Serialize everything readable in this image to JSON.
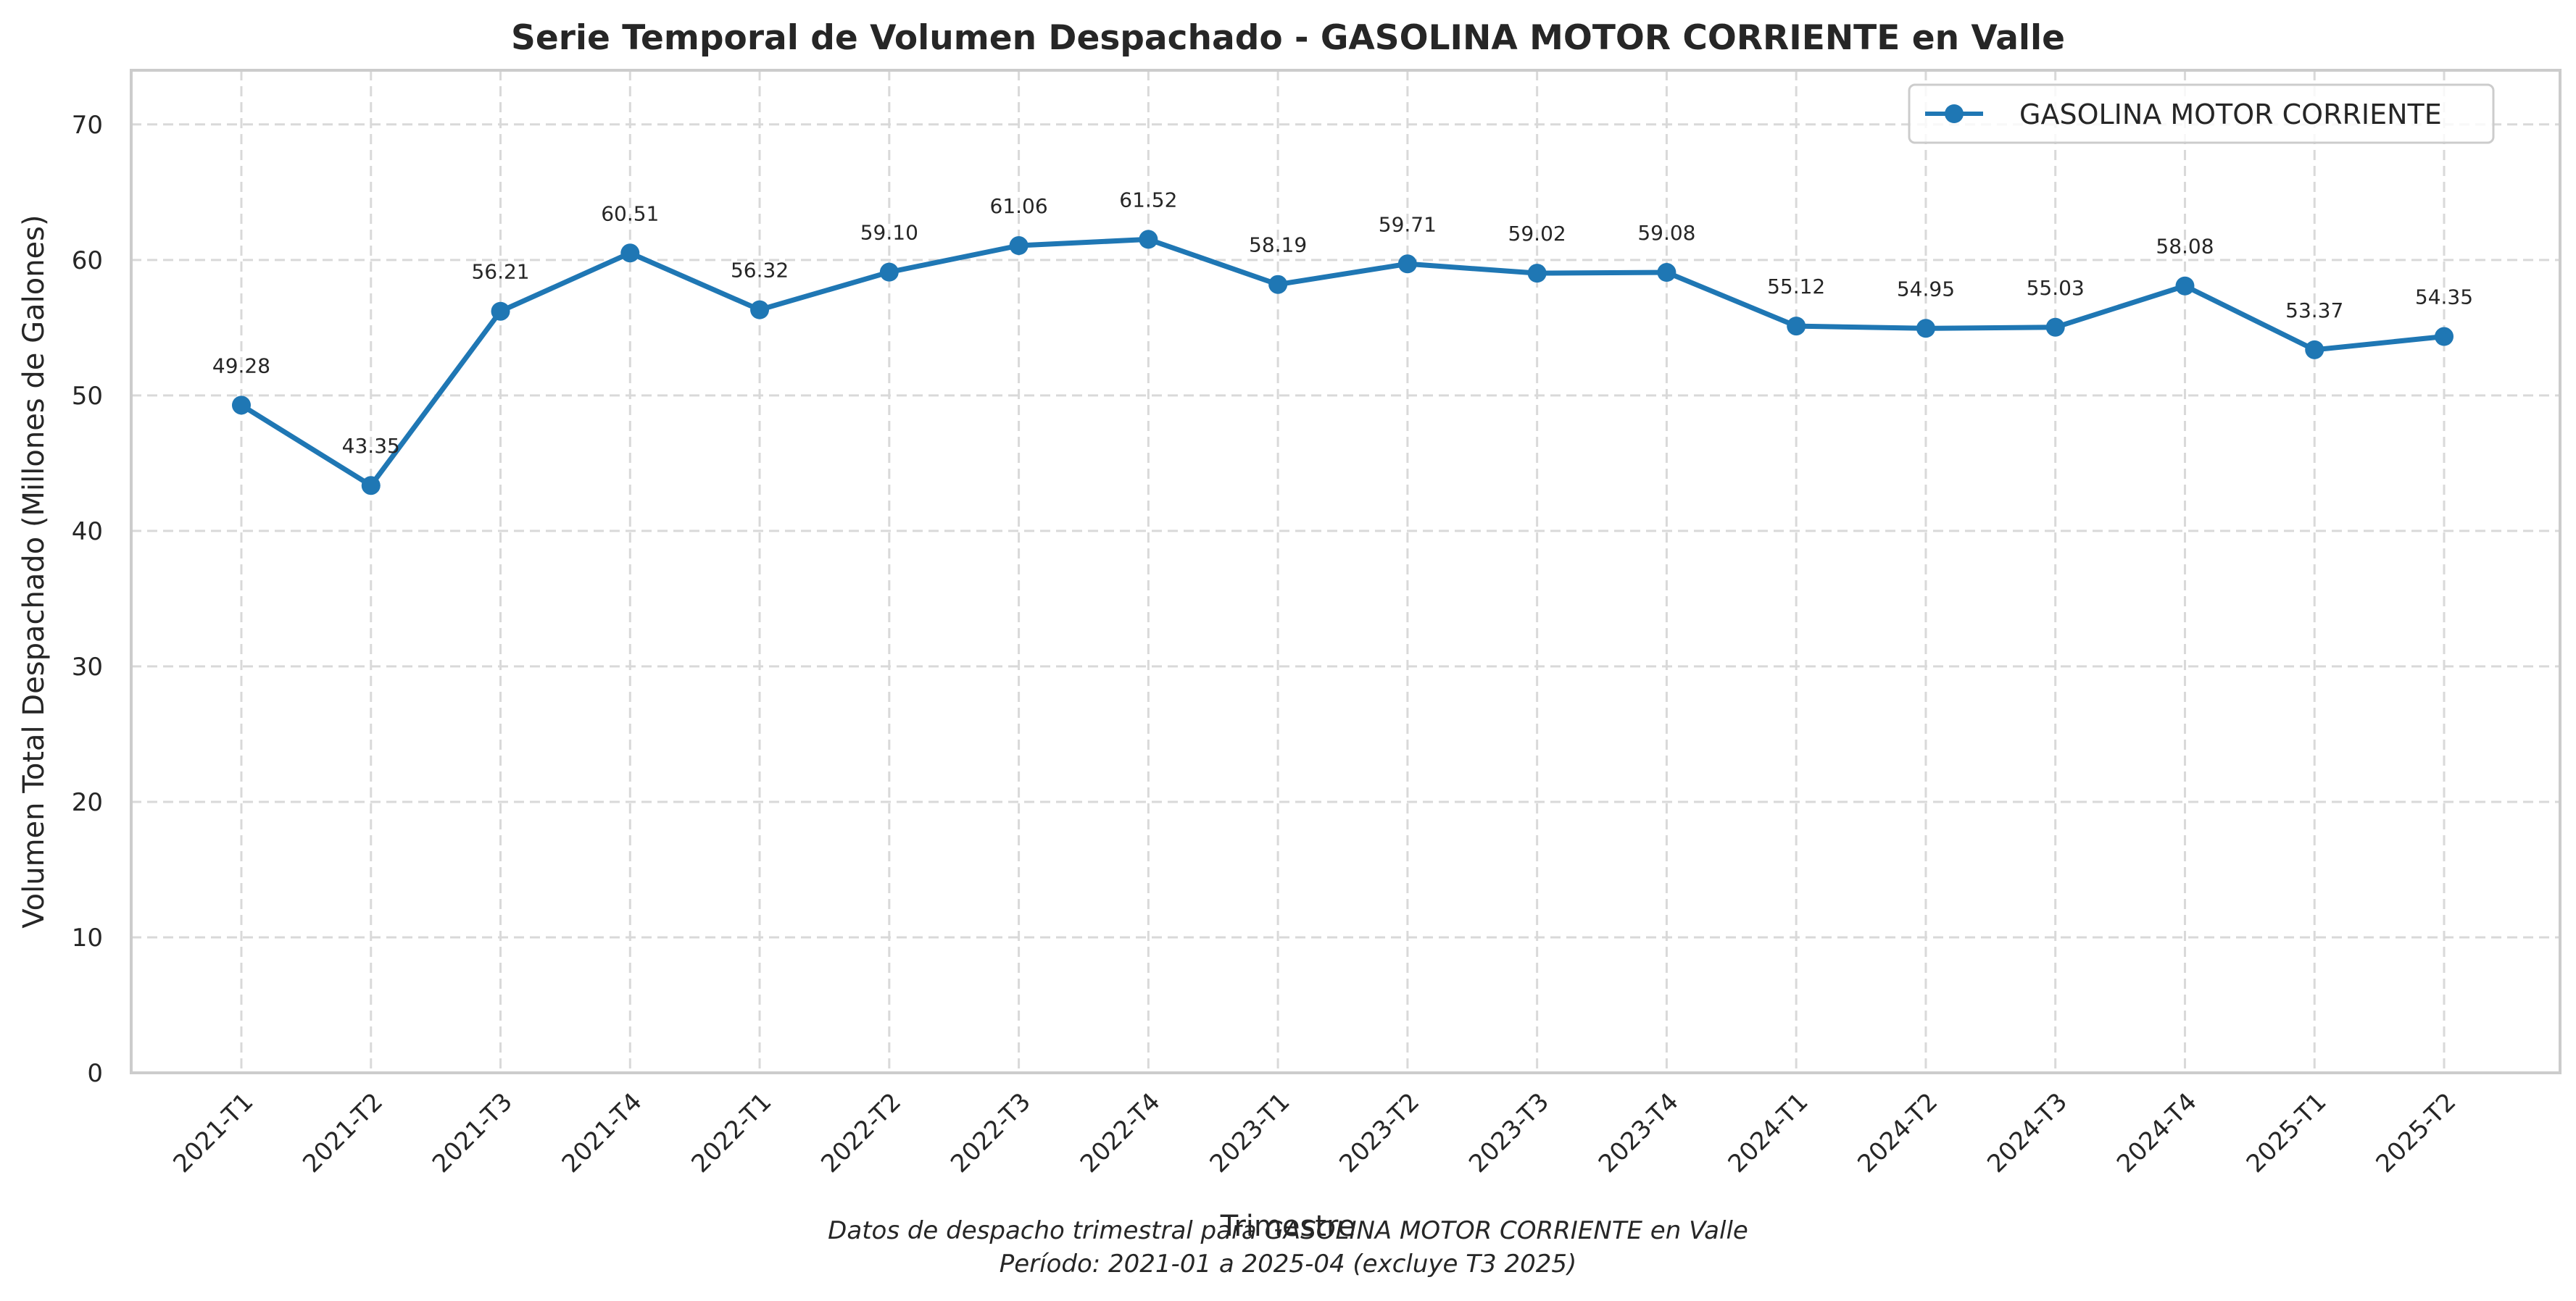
{
  "chart_data": {
    "type": "line",
    "title": "Serie Temporal de Volumen Despachado - GASOLINA MOTOR CORRIENTE en Valle",
    "xlabel": "Trimestre",
    "ylabel": "Volumen Total Despachado (Millones de Galones)",
    "ylim": [
      0,
      74
    ],
    "yticks": [
      0,
      10,
      20,
      30,
      40,
      50,
      60,
      70
    ],
    "grid": true,
    "legend_position": "top-right",
    "categories": [
      "2021-T1",
      "2021-T2",
      "2021-T3",
      "2021-T4",
      "2022-T1",
      "2022-T2",
      "2022-T3",
      "2022-T4",
      "2023-T1",
      "2023-T2",
      "2023-T3",
      "2023-T4",
      "2024-T1",
      "2024-T2",
      "2024-T3",
      "2024-T4",
      "2025-T1",
      "2025-T2"
    ],
    "series": [
      {
        "name": "GASOLINA MOTOR CORRIENTE",
        "color": "#1f77b4",
        "values": [
          49.28,
          43.35,
          56.21,
          60.51,
          56.32,
          59.1,
          61.06,
          61.52,
          58.19,
          59.71,
          59.02,
          59.08,
          55.12,
          54.95,
          55.03,
          58.08,
          53.37,
          54.35
        ],
        "labels": [
          "49.28",
          "43.35",
          "56.21",
          "60.51",
          "56.32",
          "59.10",
          "61.06",
          "61.52",
          "58.19",
          "59.71",
          "59.02",
          "59.08",
          "55.12",
          "54.95",
          "55.03",
          "58.08",
          "53.37",
          "54.35"
        ]
      }
    ],
    "footnote_lines": [
      "Datos de despacho trimestral para GASOLINA MOTOR CORRIENTE en Valle",
      "Período: 2021-01 a 2025-04 (excluye T3 2025)"
    ]
  }
}
